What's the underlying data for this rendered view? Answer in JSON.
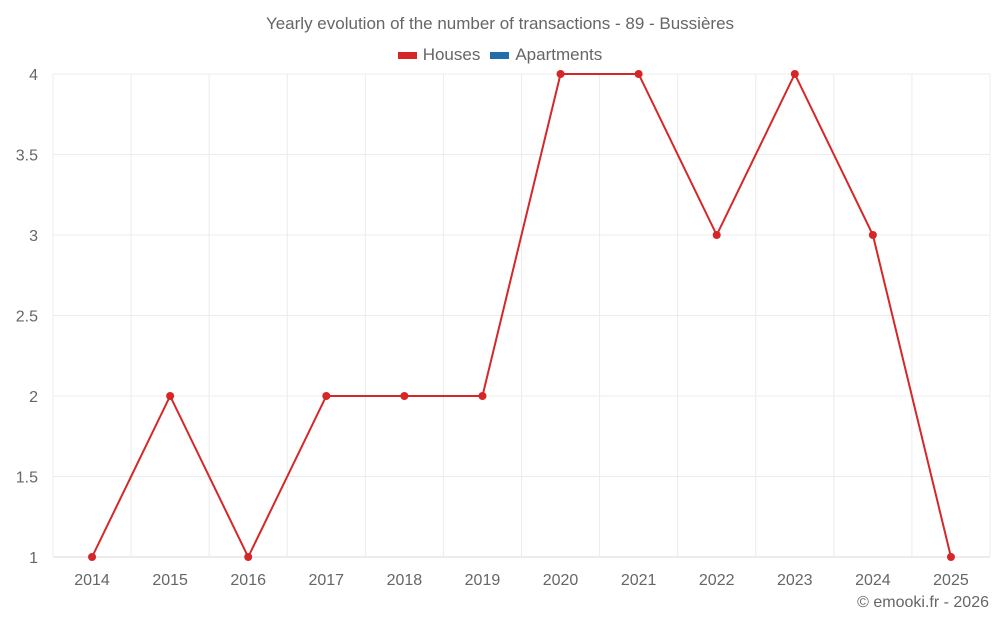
{
  "chart_data": {
    "type": "line",
    "title": "Yearly evolution of the number of transactions - 89 - Bussières",
    "xlabel": "",
    "ylabel": "",
    "categories": [
      "2014",
      "2015",
      "2016",
      "2017",
      "2018",
      "2019",
      "2020",
      "2021",
      "2022",
      "2023",
      "2024",
      "2025"
    ],
    "series": [
      {
        "name": "Houses",
        "color": "#d62728",
        "values": [
          1,
          2,
          1,
          2,
          2,
          2,
          4,
          4,
          3,
          4,
          3,
          1
        ]
      },
      {
        "name": "Apartments",
        "color": "#1f6fa8",
        "values": []
      }
    ],
    "ylim": [
      1,
      4
    ],
    "yticks": [
      "1",
      "1.5",
      "2",
      "2.5",
      "3",
      "3.5",
      "4"
    ],
    "grid": true,
    "legend_position": "top"
  },
  "header": {
    "title": "Yearly evolution of the number of transactions - 89 - Bussières"
  },
  "legend": {
    "items": [
      {
        "label": "Houses",
        "color": "#d62728"
      },
      {
        "label": "Apartments",
        "color": "#1f6fa8"
      }
    ]
  },
  "footer": {
    "credit": "© emooki.fr - 2026"
  }
}
